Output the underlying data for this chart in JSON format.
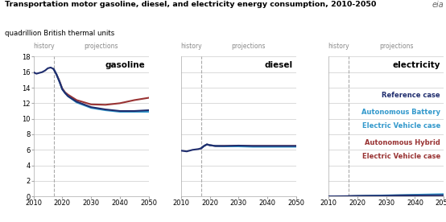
{
  "title_line1": "Transportation motor gasoline, diesel, and electricity energy consumption, 2010-2050",
  "title_line2": "quadrillion British thermal units",
  "history_year": 2017,
  "x_start": 2010,
  "x_end": 2050,
  "ylim": [
    0,
    18
  ],
  "yticks": [
    0,
    2,
    4,
    6,
    8,
    10,
    12,
    14,
    16,
    18
  ],
  "xticks": [
    2010,
    2020,
    2030,
    2040,
    2050
  ],
  "gasoline_label": "gasoline",
  "diesel_label": "diesel",
  "electricity_label": "electricity",
  "ref_color": "#1f2d6e",
  "bev_color": "#3399cc",
  "hev_color": "#993333",
  "gasoline_ref_x": [
    2010,
    2011,
    2012,
    2013,
    2014,
    2015,
    2016,
    2017,
    2018,
    2019,
    2020,
    2021,
    2022,
    2025,
    2030,
    2035,
    2040,
    2045,
    2050
  ],
  "gasoline_ref_y": [
    16.0,
    15.8,
    15.9,
    16.0,
    16.2,
    16.5,
    16.6,
    16.4,
    15.7,
    14.8,
    13.8,
    13.3,
    12.9,
    12.2,
    11.5,
    11.2,
    11.0,
    11.0,
    11.1
  ],
  "gasoline_bev_x": [
    2017,
    2018,
    2019,
    2020,
    2021,
    2022,
    2025,
    2030,
    2035,
    2040,
    2045,
    2050
  ],
  "gasoline_bev_y": [
    16.4,
    15.7,
    14.8,
    13.8,
    13.3,
    12.9,
    12.1,
    11.4,
    11.1,
    10.9,
    10.9,
    10.9
  ],
  "gasoline_hev_x": [
    2017,
    2018,
    2019,
    2020,
    2021,
    2022,
    2025,
    2030,
    2035,
    2040,
    2045,
    2050
  ],
  "gasoline_hev_y": [
    16.4,
    15.7,
    14.9,
    13.9,
    13.4,
    13.1,
    12.4,
    11.85,
    11.8,
    12.0,
    12.4,
    12.7
  ],
  "diesel_ref_x": [
    2010,
    2011,
    2012,
    2013,
    2014,
    2015,
    2016,
    2017,
    2018,
    2019,
    2020,
    2022,
    2025,
    2030,
    2035,
    2040,
    2045,
    2050
  ],
  "diesel_ref_y": [
    5.9,
    5.85,
    5.8,
    5.9,
    6.0,
    6.05,
    6.1,
    6.2,
    6.5,
    6.7,
    6.6,
    6.5,
    6.5,
    6.55,
    6.5,
    6.5,
    6.5,
    6.5
  ],
  "diesel_bev_x": [
    2017,
    2018,
    2019,
    2020,
    2022,
    2025,
    2030,
    2035,
    2040,
    2045,
    2050
  ],
  "diesel_bev_y": [
    6.2,
    6.5,
    6.7,
    6.6,
    6.5,
    6.45,
    6.45,
    6.4,
    6.4,
    6.4,
    6.4
  ],
  "diesel_hev_x": [
    2017,
    2018,
    2019,
    2020,
    2022,
    2025,
    2030,
    2035,
    2040,
    2045,
    2050
  ],
  "diesel_hev_y": [
    6.2,
    6.5,
    6.7,
    6.6,
    6.5,
    6.5,
    6.5,
    6.5,
    6.5,
    6.5,
    6.5
  ],
  "elec_ref_x": [
    2010,
    2012,
    2014,
    2016,
    2017,
    2018,
    2020,
    2025,
    2030,
    2035,
    2040,
    2045,
    2050
  ],
  "elec_ref_y": [
    0.02,
    0.02,
    0.03,
    0.04,
    0.04,
    0.05,
    0.06,
    0.08,
    0.1,
    0.12,
    0.14,
    0.15,
    0.16
  ],
  "elec_bev_x": [
    2017,
    2018,
    2020,
    2025,
    2030,
    2035,
    2040,
    2045,
    2050
  ],
  "elec_bev_y": [
    0.04,
    0.05,
    0.07,
    0.1,
    0.14,
    0.18,
    0.22,
    0.26,
    0.3
  ],
  "elec_hev_x": [
    2017,
    2018,
    2020,
    2025,
    2030,
    2035,
    2040,
    2045,
    2050
  ],
  "elec_hev_y": [
    0.04,
    0.05,
    0.06,
    0.09,
    0.12,
    0.15,
    0.17,
    0.19,
    0.2
  ],
  "legend_line1": "Reference case",
  "legend_line2a": "Autonomous Battery",
  "legend_line2b": "Electric Vehicle case",
  "legend_line3a": "Autonomous Hybrid",
  "legend_line3b": "Electric Vehicle case",
  "eia_text": "eia"
}
